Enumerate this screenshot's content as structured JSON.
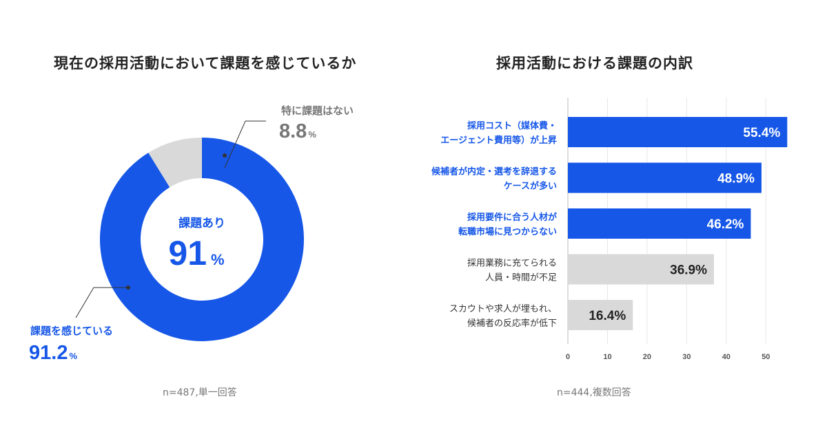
{
  "chart_data": [
    {
      "type": "pie",
      "title": "現在の採用活動において課題を感じているか",
      "center_label": "課題あり",
      "center_value": "91",
      "center_unit": "%",
      "slices": [
        {
          "label": "課題を感じている",
          "value": 91.2,
          "value_text": "91.2",
          "unit": "%",
          "color": "#1657e8"
        },
        {
          "label": "特に課題はない",
          "value": 8.8,
          "value_text": "8.8",
          "unit": "%",
          "color": "#d9d9d9"
        }
      ],
      "note": "n=487,単一回答"
    },
    {
      "type": "bar",
      "orientation": "horizontal",
      "title": "採用活動における課題の内訳",
      "categories": [
        [
          "採用コスト（媒体費・",
          "エージェント費用等）が上昇"
        ],
        [
          "候補者が内定・選考を辞退する",
          "ケースが多い"
        ],
        [
          "採用要件に合う人材が",
          "転職市場に見つからない"
        ],
        [
          "採用業務に充てられる",
          "人員・時間が不足"
        ],
        [
          "スカウトや求人が埋もれ、",
          "候補者の反応率が低下"
        ]
      ],
      "values": [
        55.4,
        48.9,
        46.2,
        36.9,
        16.4
      ],
      "value_labels": [
        "55.4%",
        "48.9%",
        "46.2%",
        "36.9%",
        "16.4%"
      ],
      "highlighted": [
        true,
        true,
        true,
        false,
        false
      ],
      "colors": {
        "highlight": "#1657e8",
        "normal": "#d9d9d9",
        "highlight_label": "#1657e8",
        "normal_label": "#333333"
      },
      "xlim": [
        0,
        55
      ],
      "xticks": [
        "0",
        "10",
        "20",
        "30",
        "40",
        "50"
      ],
      "grid": true,
      "note": "n=444,複数回答"
    }
  ]
}
